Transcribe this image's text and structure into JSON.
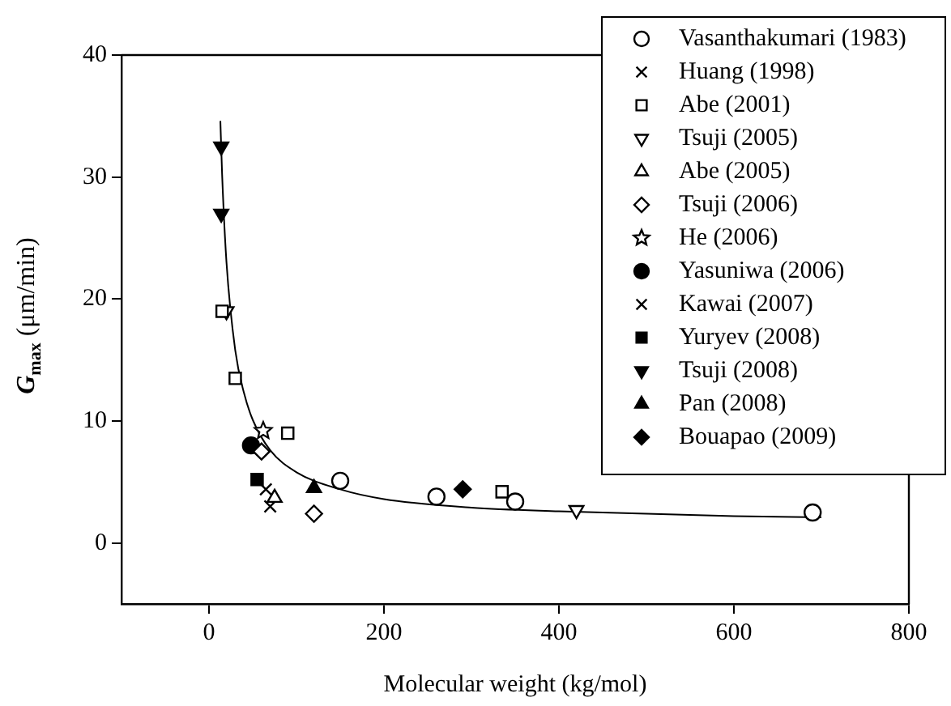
{
  "chart_data": {
    "type": "scatter",
    "xlabel": "Molecular weight (kg/mol)",
    "ylabel": "G$_{max}$ (μm/min)",
    "xlim": [
      -100,
      800
    ],
    "xticks": [
      0,
      200,
      400,
      600,
      800
    ],
    "ylim": [
      -5,
      40
    ],
    "yticks": [
      0,
      10,
      20,
      30,
      40
    ],
    "grid": false,
    "legend": "top right",
    "series": [
      {
        "name": "Vasanthakumari (1983)",
        "color": "#000000",
        "marker": "circle-open",
        "x": [
          150,
          260,
          350,
          690
        ],
        "values": [
          5.1,
          3.8,
          3.4,
          2.5
        ]
      },
      {
        "name": "Huang (1998)",
        "color": "#000000",
        "marker": "cross",
        "x": [
          65
        ],
        "values": [
          4.4
        ]
      },
      {
        "name": "Abe (2001)",
        "color": "#000000",
        "marker": "square-open",
        "x": [
          15,
          30,
          90,
          335
        ],
        "values": [
          19,
          13.5,
          9,
          4.2
        ]
      },
      {
        "name": "Tsuji (2005)",
        "color": "#000000",
        "marker": "triangle-down-open",
        "x": [
          20,
          420
        ],
        "values": [
          19,
          2.7
        ]
      },
      {
        "name": "Abe (2005)",
        "color": "#000000",
        "marker": "triangle-open",
        "x": [
          75
        ],
        "values": [
          3.7
        ]
      },
      {
        "name": "Tsuji (2006)",
        "color": "#000000",
        "marker": "diamond-open",
        "x": [
          60,
          120
        ],
        "values": [
          7.5,
          2.4
        ]
      },
      {
        "name": "He (2006)",
        "color": "#000000",
        "marker": "star",
        "x": [
          62
        ],
        "values": [
          9.2
        ]
      },
      {
        "name": "Yasuniwa (2006)",
        "color": "#000000",
        "marker": "circle",
        "x": [
          48
        ],
        "values": [
          8
        ]
      },
      {
        "name": "Kawai (2007)",
        "color": "#000000",
        "marker": "cross",
        "x": [
          70
        ],
        "values": [
          3
        ]
      },
      {
        "name": "Yuryev (2008)",
        "color": "#000000",
        "marker": "square",
        "x": [
          55
        ],
        "values": [
          5.2
        ]
      },
      {
        "name": "Tsuji (2008)",
        "color": "#000000",
        "marker": "triangle-down",
        "x": [
          14,
          14
        ],
        "values": [
          32.5,
          27
        ]
      },
      {
        "name": "Pan (2008)",
        "color": "#000000",
        "marker": "triangle",
        "x": [
          120
        ],
        "values": [
          4.5
        ]
      },
      {
        "name": "Bouapao (2009)",
        "color": "#000000",
        "marker": "diamond",
        "x": [
          290
        ],
        "values": [
          4.4
        ]
      },
      {
        "type": "line",
        "color": "#000000",
        "marker": "none",
        "x": [
          13,
          15,
          20,
          30,
          40,
          50,
          70,
          100,
          150,
          200,
          300,
          400,
          500,
          600,
          700
        ],
        "values": [
          34.6,
          30.2,
          23,
          15.8,
          12.3,
          10.1,
          7.6,
          5.8,
          4.4,
          3.6,
          2.9,
          2.6,
          2.4,
          2.2,
          2.1
        ]
      }
    ]
  }
}
